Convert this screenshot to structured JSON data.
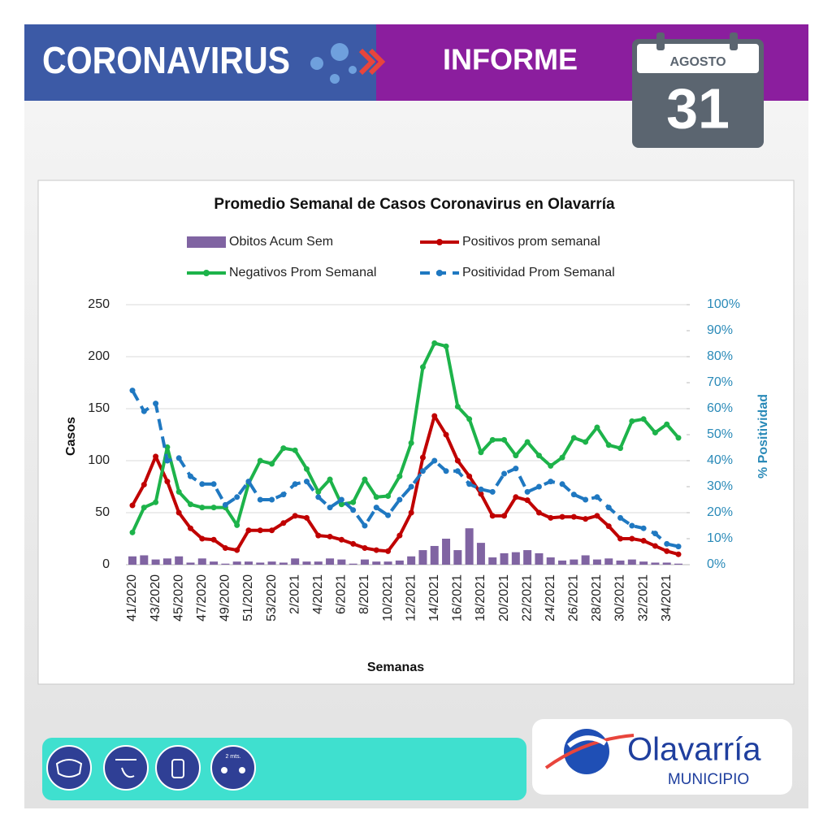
{
  "header": {
    "title": "CORONAVIRUS",
    "subtitle": "INFORME",
    "month": "AGOSTO",
    "day": 31
  },
  "chart_data": {
    "type": "combo",
    "title": "Promedio Semanal  de Casos Coronavirus en Olavarría",
    "x_label": "Semanas",
    "y_label": "Casos",
    "y2_label": "% Positividad",
    "categories": [
      "41/2020",
      null,
      "43/2020",
      null,
      "45/2020",
      null,
      "47/2020",
      null,
      "49/2020",
      null,
      "51/2020",
      null,
      "53/2020",
      null,
      "2/2021",
      null,
      "4/2021",
      null,
      "6/2021",
      null,
      "8/2021",
      null,
      "10/2021",
      null,
      "12/2021",
      null,
      "14/2021",
      null,
      "16/2021",
      null,
      "18/2021",
      null,
      "20/2021",
      null,
      "22/2021",
      null,
      "24/2021",
      null,
      "26/2021",
      null,
      "28/2021",
      null,
      "30/2021",
      null,
      "32/2021",
      null,
      "34/2021",
      null
    ],
    "ylim": [
      0,
      250
    ],
    "yticks": [
      0,
      50,
      100,
      150,
      200,
      250
    ],
    "y2lim": [
      0,
      100
    ],
    "y2ticks": [
      {
        "value": 0,
        "label": "0%"
      },
      {
        "value": 10,
        "label": "10%"
      },
      {
        "value": 20,
        "label": "20%"
      },
      {
        "value": 30,
        "label": "30%"
      },
      {
        "value": 40,
        "label": "40%"
      },
      {
        "value": 50,
        "label": "50%"
      },
      {
        "value": 60,
        "label": "60%"
      },
      {
        "value": 70,
        "label": "70%"
      },
      {
        "value": 80,
        "label": "80%"
      },
      {
        "value": 90,
        "label": "90%"
      },
      {
        "value": 100,
        "label": "100%"
      }
    ],
    "grid": true,
    "series": [
      {
        "name": "Obitos Acum Sem",
        "type": "bar",
        "color": "#8064a2",
        "values": [
          8,
          9,
          5,
          6,
          8,
          2,
          6,
          3,
          1,
          3,
          3,
          2,
          3,
          2,
          6,
          3,
          3,
          6,
          5,
          1,
          5,
          3,
          3,
          4,
          8,
          14,
          18,
          25,
          14,
          35,
          21,
          7,
          11,
          12,
          14,
          11,
          7,
          4,
          5,
          9,
          5,
          6,
          4,
          5,
          3,
          2,
          2,
          1
        ]
      },
      {
        "name": "Positivos prom semanal",
        "type": "line",
        "color": "#c00000",
        "values": [
          57,
          77,
          104,
          80,
          50,
          35,
          25,
          24,
          16,
          14,
          33,
          33,
          33,
          40,
          47,
          45,
          28,
          27,
          24,
          20,
          16,
          14,
          13,
          28,
          50,
          103,
          143,
          125,
          100,
          85,
          68,
          47,
          47,
          65,
          62,
          50,
          45,
          46,
          46,
          44,
          47,
          37,
          25,
          25,
          23,
          18,
          13,
          10
        ]
      },
      {
        "name": "Negativos Prom Semanal",
        "type": "line",
        "color": "#1db34a",
        "values": [
          31,
          55,
          60,
          113,
          70,
          58,
          55,
          55,
          55,
          38,
          78,
          100,
          97,
          112,
          110,
          92,
          70,
          82,
          58,
          60,
          82,
          65,
          66,
          85,
          117,
          190,
          213,
          210,
          152,
          140,
          108,
          120,
          120,
          105,
          118,
          105,
          95,
          103,
          122,
          118,
          132,
          115,
          112,
          138,
          140,
          127,
          135,
          122
        ]
      },
      {
        "name": "Positividad Prom Semanal",
        "type": "line",
        "color": "#1f78c1",
        "axis": "y2",
        "line_style": "dashed",
        "values": [
          67,
          59,
          62,
          40,
          41,
          34,
          31,
          31,
          23,
          26,
          32,
          25,
          25,
          27,
          31,
          32,
          26,
          22,
          25,
          21,
          15,
          22,
          19,
          25,
          30,
          36,
          40,
          36,
          36,
          31,
          29,
          28,
          35,
          37,
          28,
          30,
          32,
          31,
          27,
          25,
          26,
          22,
          18,
          15,
          14,
          12,
          8,
          7
        ]
      }
    ]
  },
  "footer": {
    "icon_label": "2 mts.",
    "brand": "Olavarría",
    "brand_sub": "MUNICIPIO"
  }
}
